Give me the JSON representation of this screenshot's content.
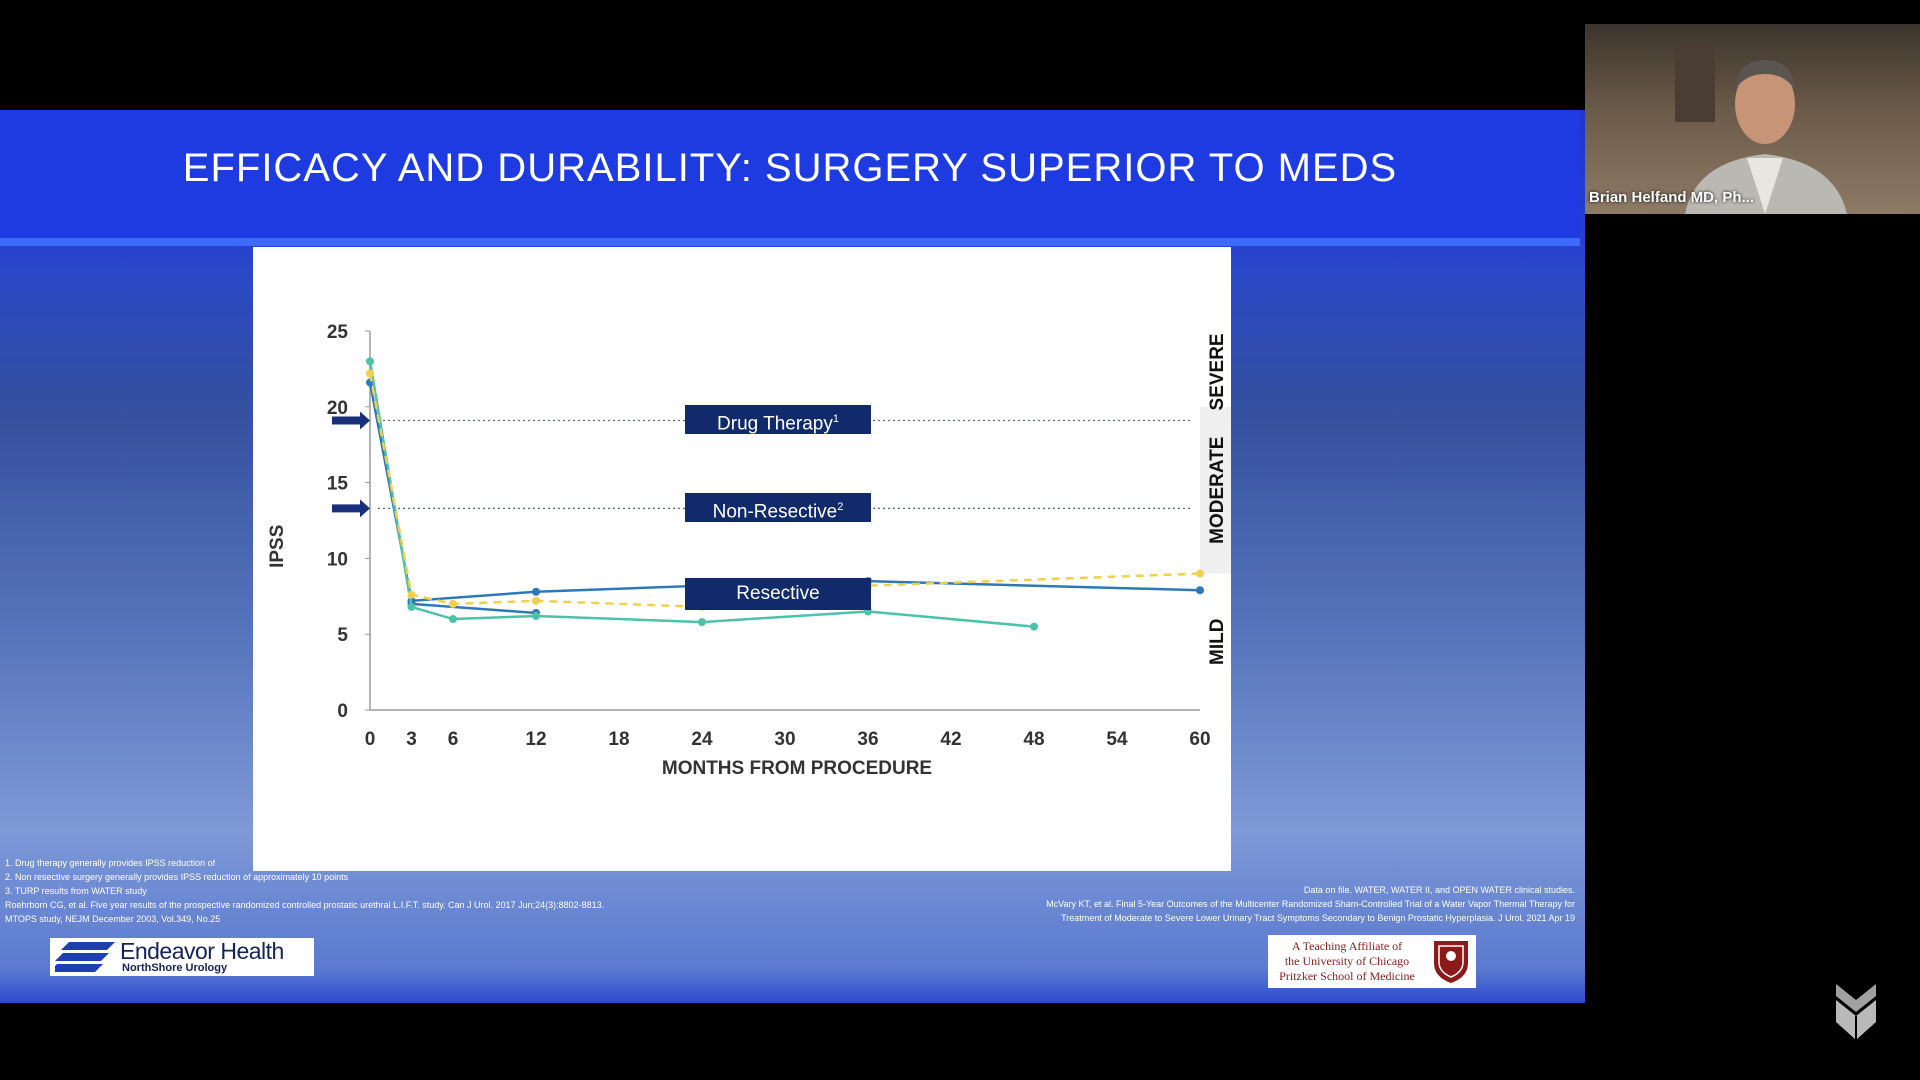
{
  "slide": {
    "title": "EFFICACY AND DURABILITY: SURGERY SUPERIOR TO MEDS"
  },
  "chart_data": {
    "type": "line",
    "xlabel": "MONTHS FROM PROCEDURE",
    "ylabel": "IPSS",
    "xlim": [
      0,
      60
    ],
    "ylim": [
      0,
      25
    ],
    "x_ticks": [
      0,
      3,
      6,
      12,
      18,
      24,
      30,
      36,
      42,
      48,
      54,
      60
    ],
    "y_ticks": [
      0,
      5,
      10,
      15,
      20,
      25
    ],
    "severity_bands": [
      "SEVERE",
      "MODERATE",
      "MILD"
    ],
    "reference_lines": [
      {
        "label": "Drug Therapy",
        "sup": "1",
        "y": 19.1
      },
      {
        "label": "Non-Resective",
        "sup": "2",
        "y": 13.3
      }
    ],
    "resective_label": "Resective",
    "series": [
      {
        "color": "#2f78b8",
        "dashed": false,
        "x": [
          0,
          3,
          12,
          24,
          36,
          60
        ],
        "y": [
          21.6,
          7.2,
          7.8,
          8.2,
          8.5,
          7.9
        ]
      },
      {
        "color": "#2f78b8",
        "dashed": false,
        "x": [
          3,
          12
        ],
        "y": [
          7.0,
          6.4
        ]
      },
      {
        "color": "#4cc2a8",
        "dashed": false,
        "x": [
          0,
          3,
          6,
          12,
          24,
          36,
          48
        ],
        "y": [
          23.0,
          6.8,
          6.0,
          6.2,
          5.8,
          6.5,
          5.5
        ]
      },
      {
        "color": "#f2cf4f",
        "dashed": true,
        "x": [
          0,
          3,
          6,
          12,
          24,
          36,
          60
        ],
        "y": [
          22.2,
          7.6,
          7.0,
          7.2,
          6.8,
          8.2,
          9.0
        ]
      }
    ]
  },
  "footnotes_left": [
    "1. Drug therapy generally provides IPSS reduction of",
    "2. Non resective surgery generally provides IPSS reduction of approximately 10 points",
    "3. TURP results from WATER study",
    "Roehrborn CG, et al. Five year results of the prospective randomized controlled prostatic urethral L.I.F.T. study. Can J Urol. 2017 Jun;24(3):8802-8813.",
    "MTOPS study, NEJM December 2003, Vol.349, No.25"
  ],
  "footnotes_right": [
    "Data on file. WATER, WATER II, and OPEN WATER clinical studies.",
    "McVary KT, et al. Final 5-Year Outcomes of the Multicenter Randomized Sham-Controlled Trial of a Water Vapor Thermal Therapy for",
    "Treatment of Moderate to Severe Lower Urinary Tract Symptoms Secondary to Benign Prostatic Hyperplasia. J Urol. 2021 Apr 19"
  ],
  "logos": {
    "endeavor_name": "Endeavor Health",
    "endeavor_sub": "NorthShore Urology",
    "uchicago_lines": [
      "A Teaching Affiliate of",
      "the University of Chicago",
      "Pritzker School of Medicine"
    ]
  },
  "webcam": {
    "presenter_name": "Brian Helfand MD, Ph..."
  },
  "colors": {
    "title_band": "#1d3be0",
    "label_box": "#112a6b",
    "axis_text": "#333333"
  }
}
